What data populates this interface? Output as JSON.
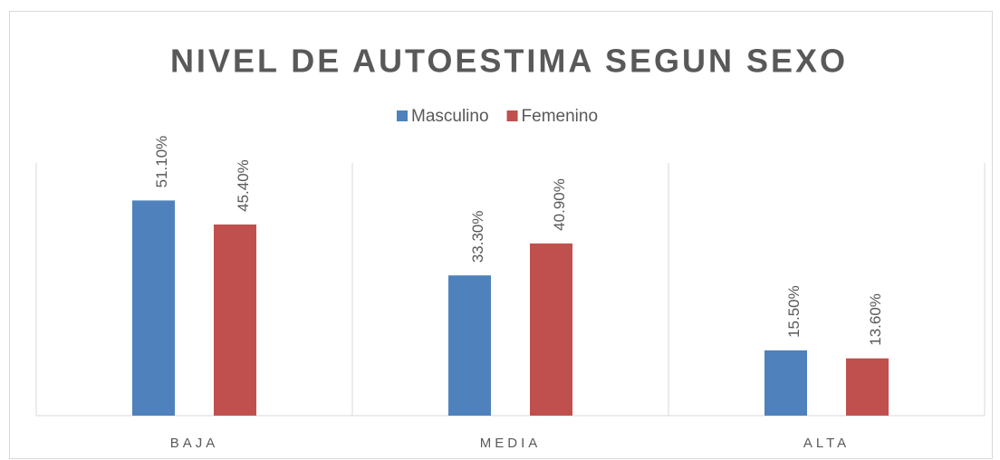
{
  "chart_data": {
    "type": "bar",
    "title": "NIVEL DE AUTOESTIMA SEGUN SEXO",
    "categories": [
      "BAJA",
      "MEDIA",
      "ALTA"
    ],
    "series": [
      {
        "name": "Masculino",
        "color": "#4f81bd",
        "values": [
          51.1,
          33.3,
          15.5
        ],
        "value_labels": [
          "51.10%",
          "33.30%",
          "15.50%"
        ]
      },
      {
        "name": "Femenino",
        "color": "#c0504d",
        "values": [
          45.4,
          40.9,
          13.6
        ],
        "value_labels": [
          "45.40%",
          "40.90%",
          "13.60%"
        ]
      }
    ],
    "ylim": [
      0,
      60
    ],
    "legend": "top"
  }
}
